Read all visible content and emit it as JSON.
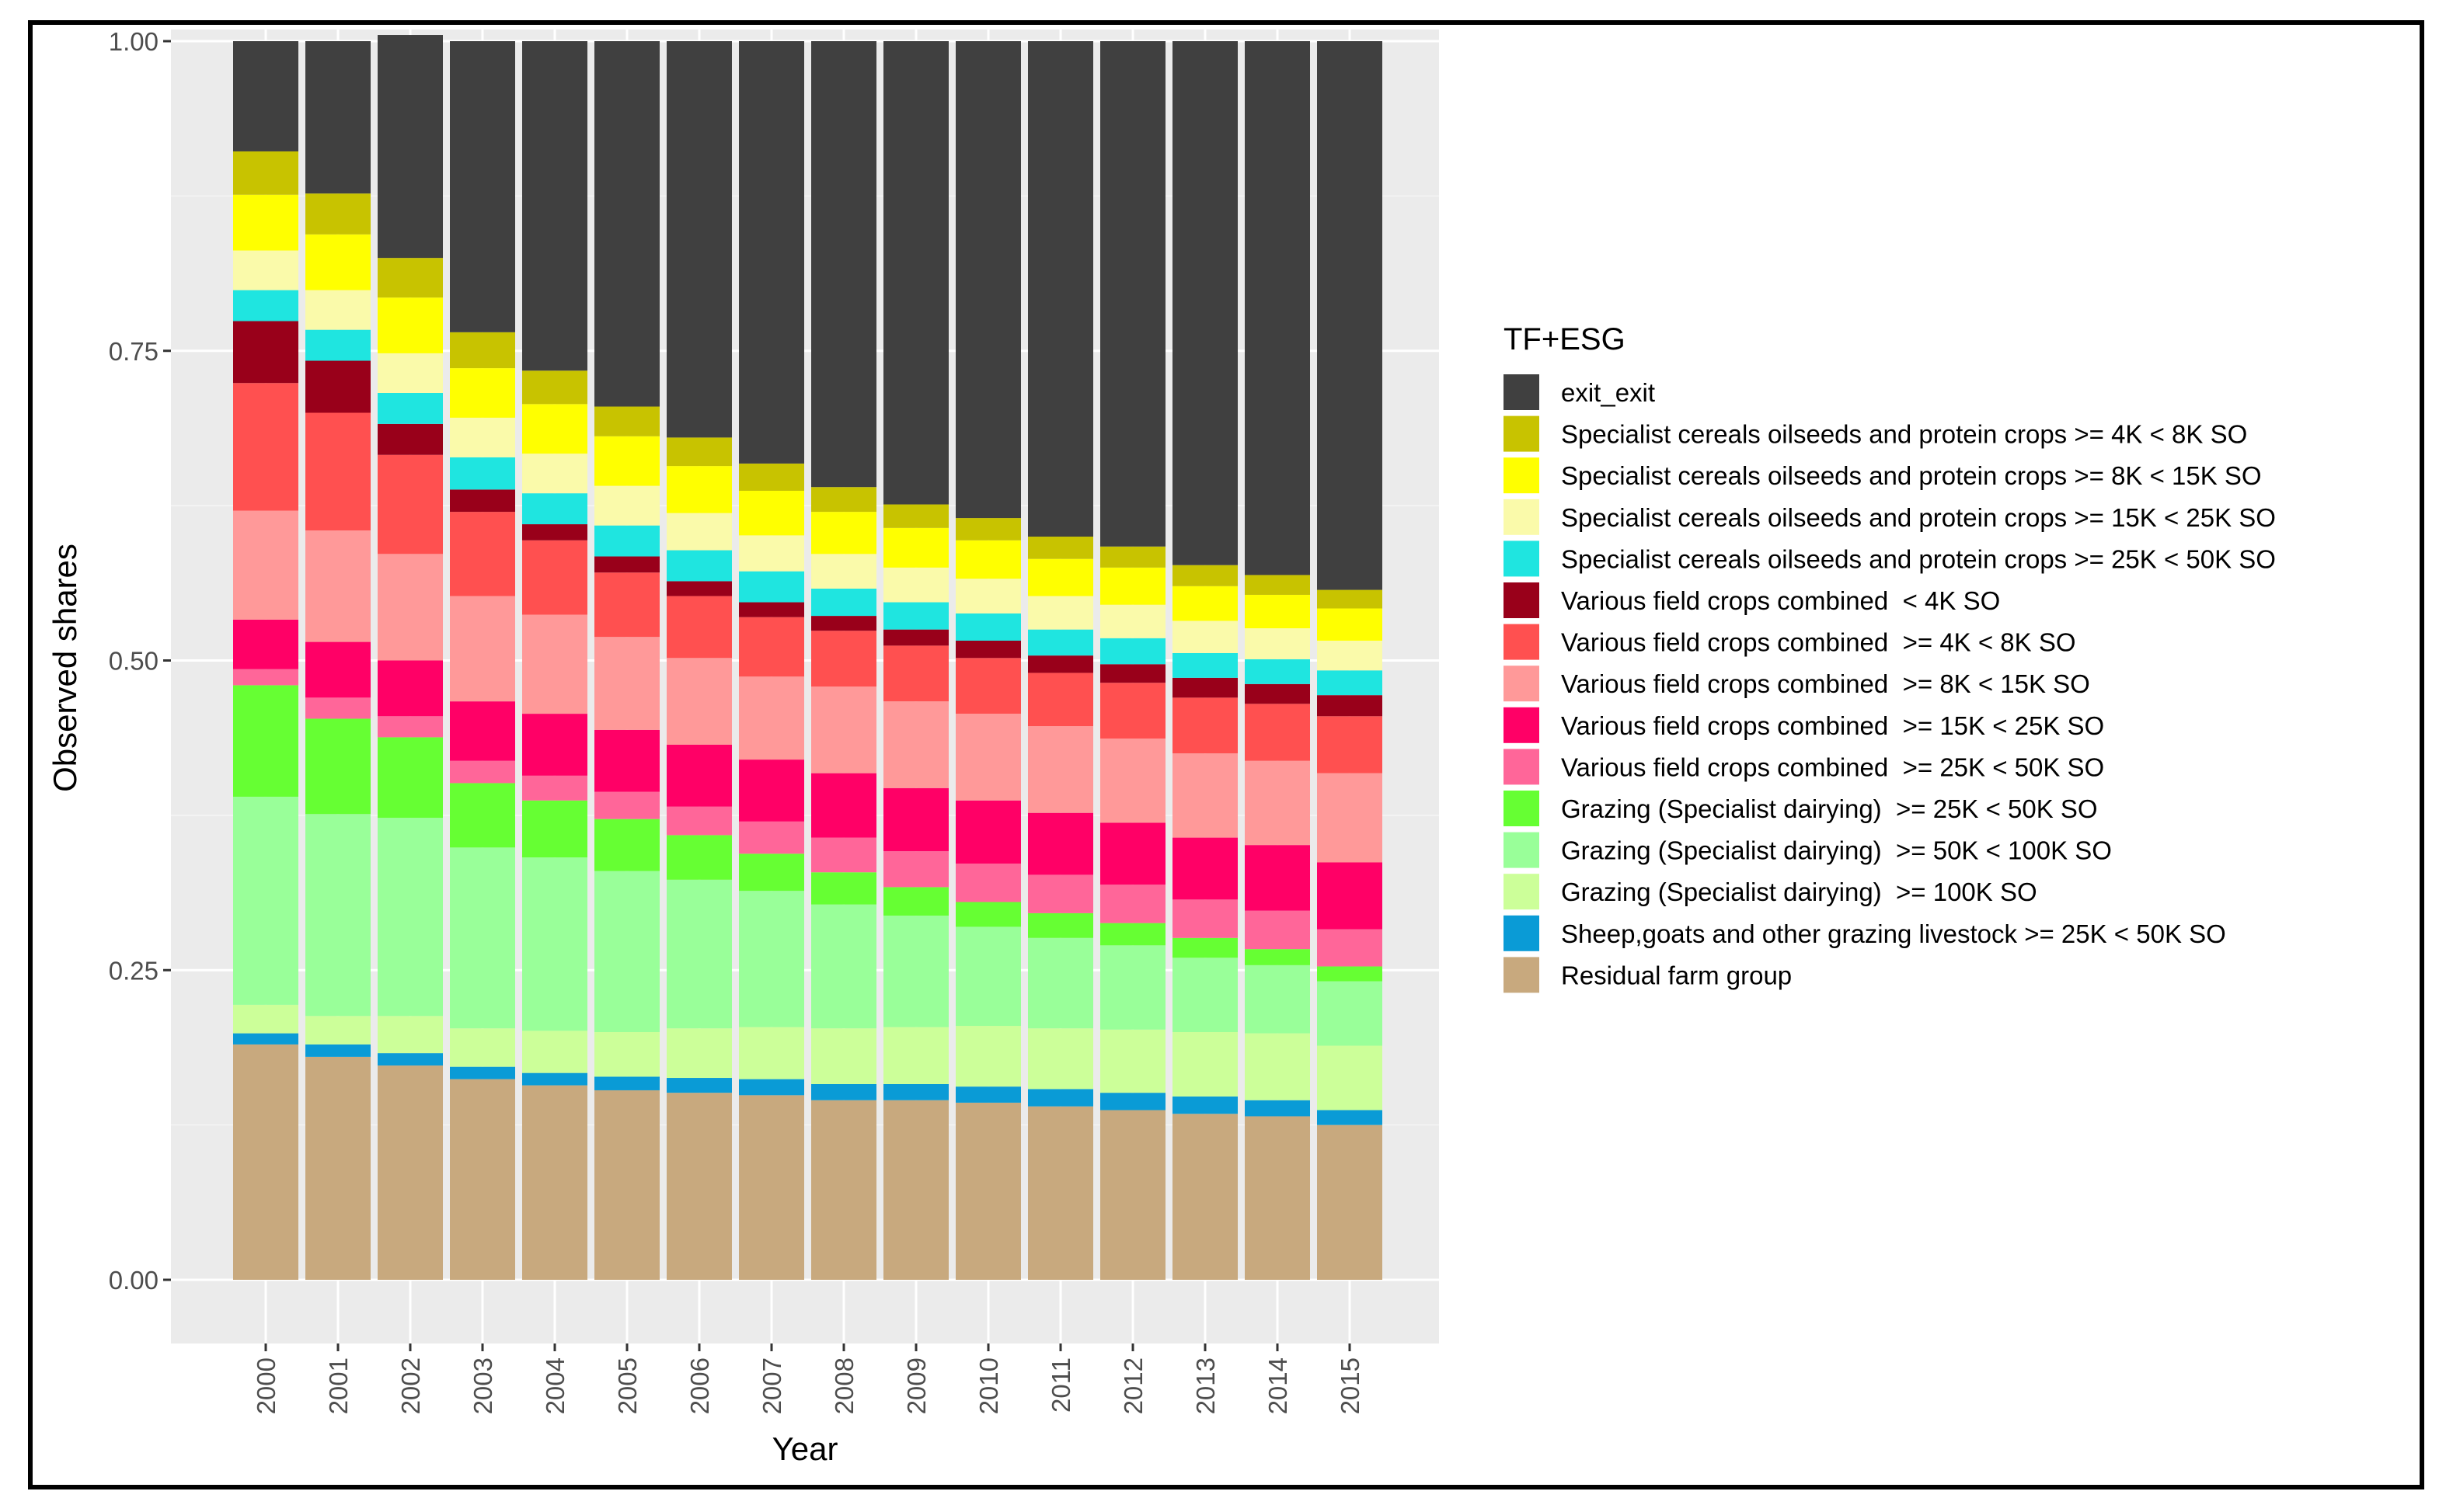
{
  "chart_data": {
    "type": "bar",
    "stacked": true,
    "title": "",
    "xlabel": "Year",
    "ylabel": "Observed shares",
    "ylim": [
      0,
      1
    ],
    "yticks": [
      "0.00",
      "0.25",
      "0.50",
      "0.75",
      "1.00"
    ],
    "categories": [
      "2000",
      "2001",
      "2002",
      "2003",
      "2004",
      "2005",
      "2006",
      "2007",
      "2008",
      "2009",
      "2010",
      "2011",
      "2012",
      "2013",
      "2014",
      "2015"
    ],
    "legend_title": "TF+ESG",
    "legend_position": "right",
    "series": [
      {
        "name": "Residual farm group",
        "color": "#C8A97E",
        "values": [
          0.19,
          0.18,
          0.173,
          0.162,
          0.157,
          0.153,
          0.151,
          0.149,
          0.145,
          0.145,
          0.143,
          0.14,
          0.137,
          0.134,
          0.132,
          0.125
        ]
      },
      {
        "name": "Sheep,goats and other grazing livestock >= 25K < 50K SO",
        "color": "#0A9BD6",
        "values": [
          0.009,
          0.01,
          0.01,
          0.01,
          0.01,
          0.011,
          0.012,
          0.013,
          0.013,
          0.013,
          0.013,
          0.014,
          0.014,
          0.014,
          0.013,
          0.012
        ]
      },
      {
        "name": "Grazing (Specialist dairying)  >= 100K SO",
        "color": "#CCFF99",
        "values": [
          0.023,
          0.023,
          0.03,
          0.031,
          0.034,
          0.036,
          0.04,
          0.042,
          0.045,
          0.046,
          0.049,
          0.049,
          0.051,
          0.052,
          0.054,
          0.052
        ]
      },
      {
        "name": "Grazing (Specialist dairying)  >= 50K < 100K SO",
        "color": "#99FF99",
        "values": [
          0.168,
          0.163,
          0.16,
          0.146,
          0.14,
          0.13,
          0.12,
          0.11,
          0.1,
          0.09,
          0.08,
          0.073,
          0.068,
          0.06,
          0.055,
          0.052
        ]
      },
      {
        "name": "Grazing (Specialist dairying)  >= 25K < 50K SO",
        "color": "#66FF33",
        "values": [
          0.09,
          0.077,
          0.065,
          0.052,
          0.046,
          0.042,
          0.036,
          0.03,
          0.026,
          0.023,
          0.02,
          0.02,
          0.018,
          0.016,
          0.013,
          0.012
        ]
      },
      {
        "name": "Various field crops combined  >= 25K < 50K SO",
        "color": "#FF6699",
        "values": [
          0.013,
          0.017,
          0.017,
          0.018,
          0.02,
          0.022,
          0.023,
          0.026,
          0.028,
          0.029,
          0.031,
          0.031,
          0.031,
          0.031,
          0.031,
          0.03
        ]
      },
      {
        "name": "Various field crops combined  >= 15K < 25K SO",
        "color": "#FF0066",
        "values": [
          0.04,
          0.045,
          0.045,
          0.048,
          0.05,
          0.05,
          0.05,
          0.05,
          0.052,
          0.051,
          0.051,
          0.05,
          0.05,
          0.05,
          0.053,
          0.054
        ]
      },
      {
        "name": "Various field crops combined  >= 8K < 15K SO",
        "color": "#FF9999",
        "values": [
          0.088,
          0.09,
          0.086,
          0.085,
          0.08,
          0.075,
          0.07,
          0.067,
          0.07,
          0.07,
          0.07,
          0.07,
          0.068,
          0.068,
          0.068,
          0.072
        ]
      },
      {
        "name": "Various field crops combined  >= 4K < 8K SO",
        "color": "#FF5050",
        "values": [
          0.103,
          0.095,
          0.08,
          0.068,
          0.06,
          0.052,
          0.05,
          0.048,
          0.045,
          0.045,
          0.045,
          0.043,
          0.045,
          0.045,
          0.046,
          0.046
        ]
      },
      {
        "name": "Various field crops combined  < 4K SO",
        "color": "#99001A",
        "values": [
          0.05,
          0.042,
          0.025,
          0.018,
          0.013,
          0.013,
          0.012,
          0.012,
          0.012,
          0.013,
          0.014,
          0.014,
          0.015,
          0.016,
          0.016,
          0.017
        ]
      },
      {
        "name": "Specialist cereals oilseeds and protein crops >= 25K < 50K SO",
        "color": "#1FE5E0",
        "values": [
          0.025,
          0.025,
          0.025,
          0.026,
          0.025,
          0.025,
          0.025,
          0.025,
          0.022,
          0.022,
          0.022,
          0.021,
          0.021,
          0.02,
          0.02,
          0.02
        ]
      },
      {
        "name": "Specialist cereals oilseeds and protein crops >= 15K < 25K SO",
        "color": "#FAFAAA",
        "values": [
          0.032,
          0.032,
          0.032,
          0.032,
          0.032,
          0.032,
          0.03,
          0.029,
          0.028,
          0.028,
          0.028,
          0.027,
          0.027,
          0.026,
          0.025,
          0.024
        ]
      },
      {
        "name": "Specialist cereals oilseeds and protein crops >= 8K < 15K SO",
        "color": "#FFFF00",
        "values": [
          0.045,
          0.045,
          0.045,
          0.04,
          0.04,
          0.04,
          0.038,
          0.036,
          0.034,
          0.032,
          0.031,
          0.03,
          0.03,
          0.028,
          0.027,
          0.026
        ]
      },
      {
        "name": "Specialist cereals oilseeds and protein crops >= 4K < 8K SO",
        "color": "#C8C300",
        "values": [
          0.035,
          0.033,
          0.032,
          0.029,
          0.027,
          0.024,
          0.023,
          0.022,
          0.02,
          0.019,
          0.018,
          0.018,
          0.017,
          0.017,
          0.016,
          0.015
        ]
      },
      {
        "name": "exit_exit",
        "color": "#404040",
        "values": [
          0.089,
          0.123,
          0.18,
          0.235,
          0.266,
          0.295,
          0.32,
          0.341,
          0.36,
          0.374,
          0.385,
          0.4,
          0.408,
          0.423,
          0.431,
          0.443
        ]
      }
    ]
  }
}
